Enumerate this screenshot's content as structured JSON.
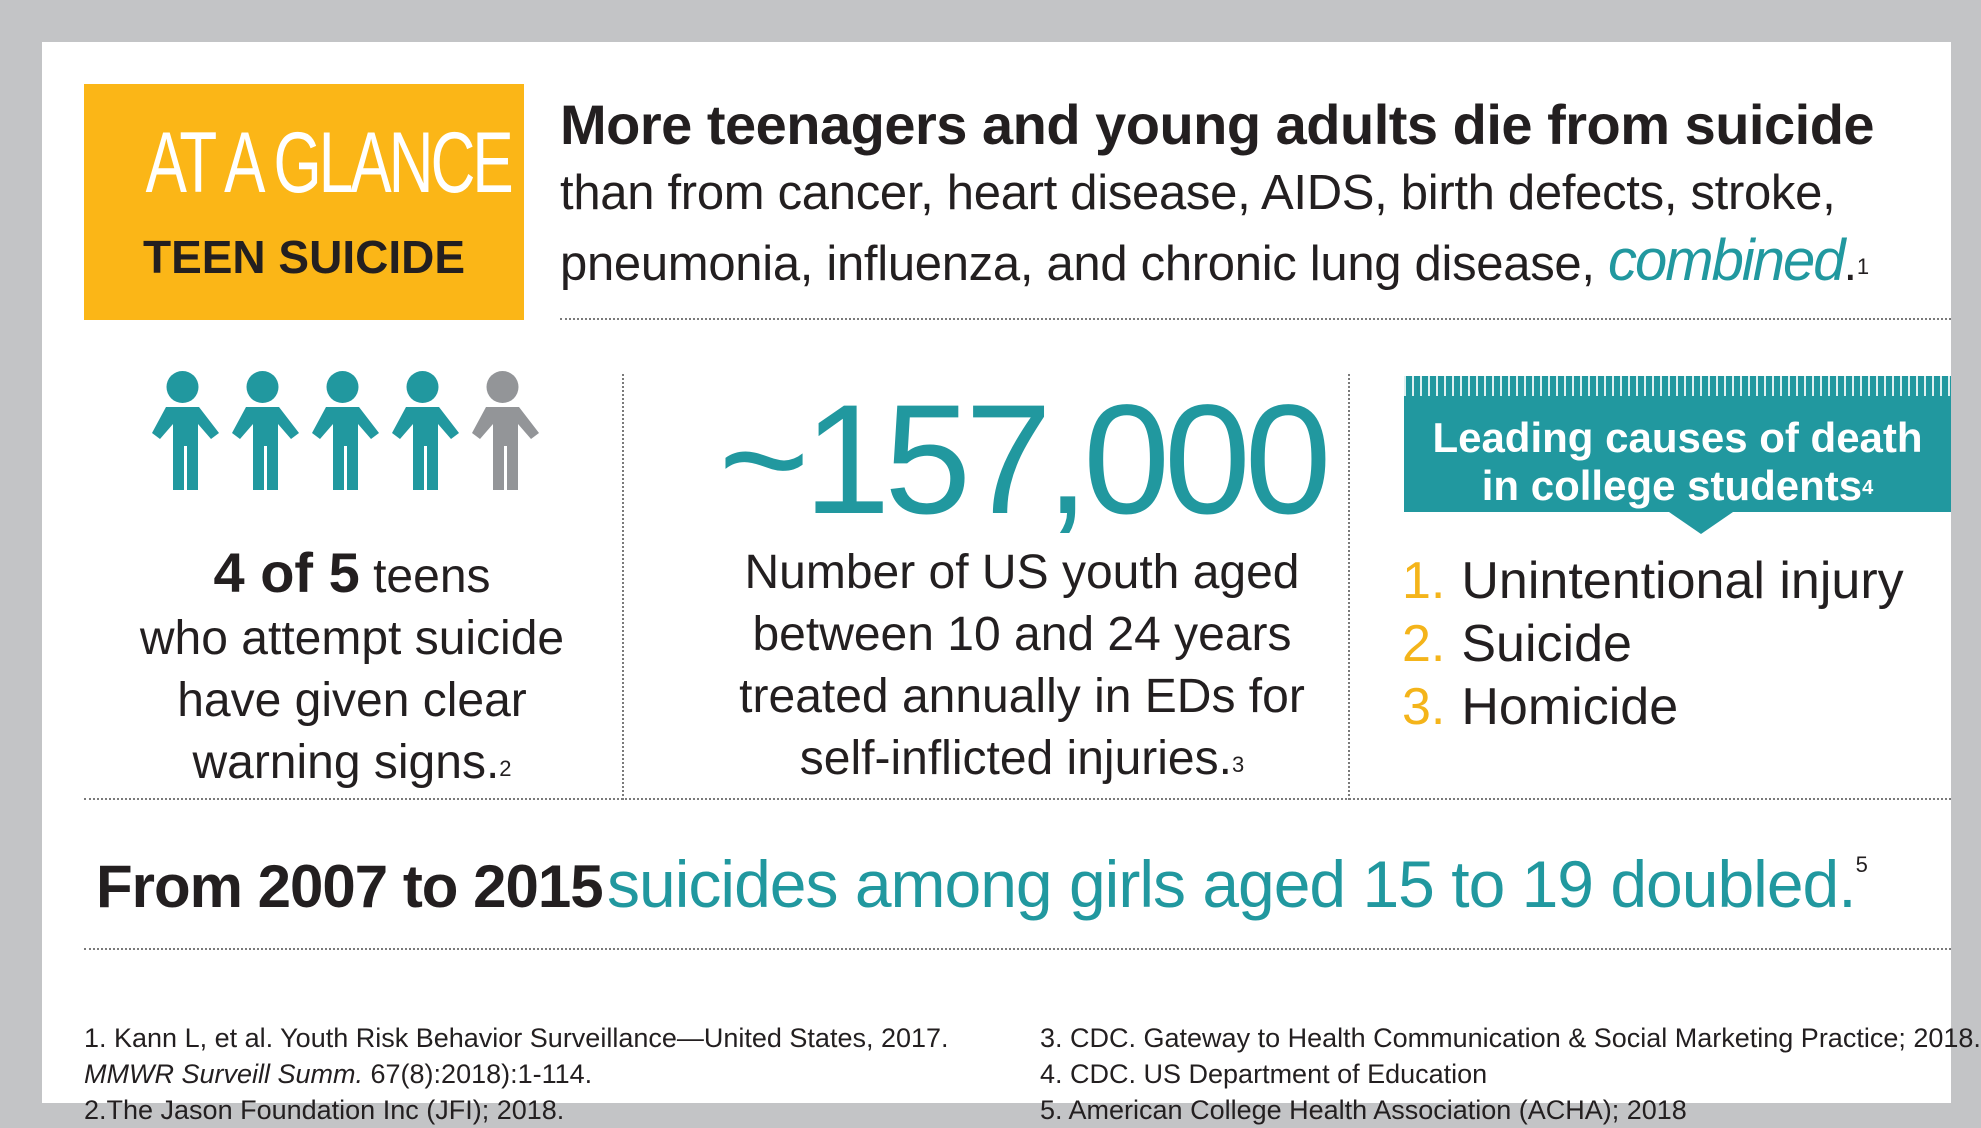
{
  "badge": {
    "line1": "AT A GLANCE",
    "line2": "TEEN SUICIDE"
  },
  "headline": {
    "bold": "More teenagers and young adults die from suicide",
    "line2": "than from cancer, heart disease, AIDS, birth defects, stroke,",
    "line3": "pneumonia, influenza, and chronic lung disease,",
    "emphasis": "combined",
    "period": ".",
    "ref": "1"
  },
  "stat1": {
    "people_total": 5,
    "people_highlighted": 4,
    "bold": "4 of 5",
    "text1": "teens",
    "text2": "who attempt suicide",
    "text3": "have given clear",
    "text4": "warning signs.",
    "ref": "2"
  },
  "stat2": {
    "number": "~157,000",
    "text1": "Number of US youth aged",
    "text2": "between 10 and 24 years",
    "text3": "treated annually in EDs for",
    "text4": "self-inflicted injuries.",
    "ref": "3"
  },
  "causes": {
    "title1": "Leading causes of death",
    "title2": "in college students",
    "ref": "4",
    "items": [
      {
        "num": "1.",
        "label": "Unintentional injury"
      },
      {
        "num": "2.",
        "label": "Suicide"
      },
      {
        "num": "3.",
        "label": "Homicide"
      }
    ]
  },
  "statement": {
    "bold": "From 2007 to 2015",
    "teal": "suicides among girls aged 15 to 19 doubled.",
    "ref": "5"
  },
  "references": {
    "r1a": "1. Kann L, et al. Youth Risk Behavior Surveillance—United States, 2017.",
    "r1b_italic": "MMWR Surveill Summ.",
    "r1b_rest": " 67(8):2018):1-114.",
    "r2": "2.The Jason Foundation Inc (JFI); 2018.",
    "r3": "3. CDC. Gateway to Health Communication & Social Marketing Practice; 2018.",
    "r4": "4. CDC. US Department of Education",
    "r5": "5. American College Health Association (ACHA); 2018"
  },
  "colors": {
    "teal": "#21989f",
    "gold": "#fbb617",
    "gray_person": "#939598",
    "frame": "#c3c4c6"
  },
  "icons": [
    "person-icon"
  ]
}
